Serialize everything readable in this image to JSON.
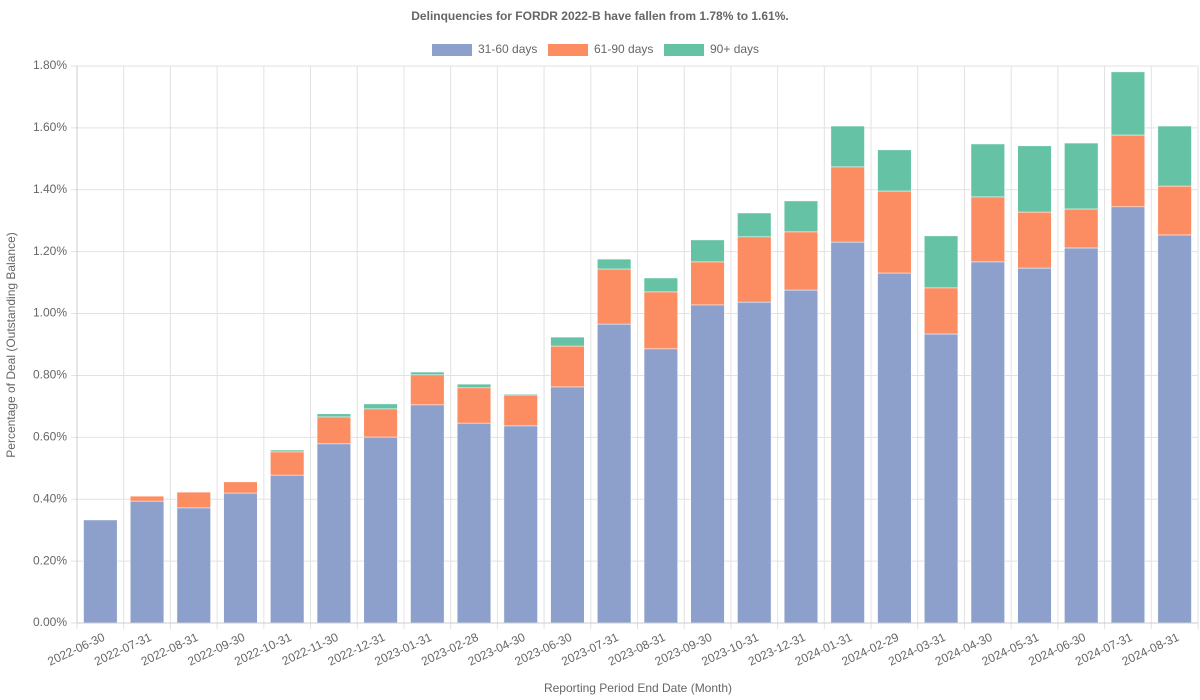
{
  "chart_data": {
    "type": "stacked_bar",
    "title": "Delinquencies for FORDR 2022-B have fallen from 1.78% to 1.61%.",
    "x_label": "Reporting Period End Date (Month)",
    "y_label": "Percentage of Deal (Outstanding Balance)",
    "categories": [
      "2022-06-30",
      "2022-07-31",
      "2022-08-31",
      "2022-09-30",
      "2022-10-31",
      "2022-11-30",
      "2022-12-31",
      "2023-01-31",
      "2023-02-28",
      "2023-04-30",
      "2023-06-30",
      "2023-07-31",
      "2023-08-31",
      "2023-09-30",
      "2023-10-31",
      "2023-12-31",
      "2024-01-31",
      "2024-02-29",
      "2024-03-31",
      "2024-04-30",
      "2024-05-31",
      "2024-06-30",
      "2024-07-31",
      "2024-08-31"
    ],
    "series": [
      {
        "name": "31-60 days",
        "color": "#8da0cb",
        "values": [
          0.333,
          0.394,
          0.372,
          0.42,
          0.478,
          0.579,
          0.601,
          0.705,
          0.646,
          0.637,
          0.763,
          0.966,
          0.886,
          1.028,
          1.037,
          1.076,
          1.231,
          1.131,
          0.934,
          1.167,
          1.147,
          1.212,
          1.345,
          1.254
        ]
      },
      {
        "name": "61-90 days",
        "color": "#fc8d62",
        "values": [
          0,
          0.016,
          0.051,
          0.036,
          0.075,
          0.087,
          0.091,
          0.097,
          0.114,
          0.1,
          0.132,
          0.178,
          0.184,
          0.139,
          0.211,
          0.188,
          0.243,
          0.265,
          0.149,
          0.21,
          0.181,
          0.126,
          0.232,
          0.158
        ]
      },
      {
        "name": "90+ days",
        "color": "#66c2a5",
        "values": [
          0,
          0,
          0,
          0,
          0.006,
          0.01,
          0.016,
          0.009,
          0.012,
          0.003,
          0.029,
          0.032,
          0.045,
          0.071,
          0.077,
          0.1,
          0.132,
          0.133,
          0.168,
          0.171,
          0.214,
          0.213,
          0.204,
          0.194
        ]
      }
    ],
    "ylim": [
      0,
      1.8
    ],
    "yticks": [
      {
        "value": 0,
        "label": "0.00%"
      },
      {
        "value": 0.2,
        "label": "0.20%"
      },
      {
        "value": 0.4,
        "label": "0.40%"
      },
      {
        "value": 0.6,
        "label": "0.60%"
      },
      {
        "value": 0.8,
        "label": "0.80%"
      },
      {
        "value": 1.0,
        "label": "1.00%"
      },
      {
        "value": 1.2,
        "label": "1.20%"
      },
      {
        "value": 1.4,
        "label": "1.40%"
      },
      {
        "value": 1.6,
        "label": "1.60%"
      },
      {
        "value": 1.8,
        "label": "1.80%"
      }
    ],
    "grid": true
  }
}
